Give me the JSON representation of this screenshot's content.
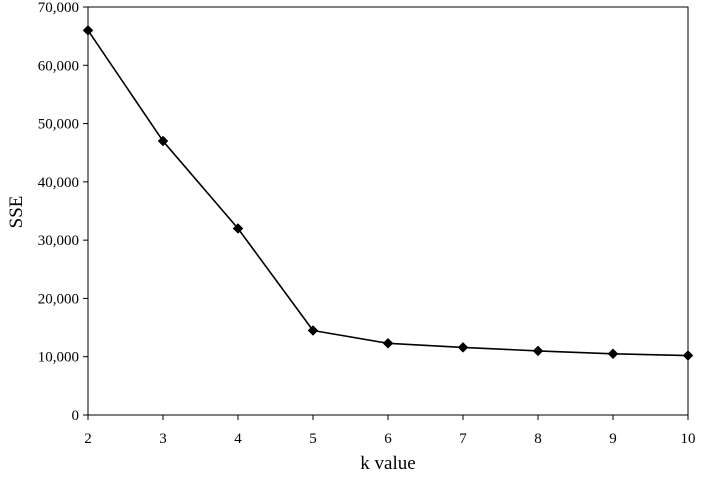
{
  "chart_data": {
    "type": "line",
    "title": "",
    "xlabel": "k value",
    "ylabel": "SSE",
    "x": [
      2,
      3,
      4,
      5,
      6,
      7,
      8,
      9,
      10
    ],
    "series": [
      {
        "name": "",
        "values": [
          66000,
          47000,
          32000,
          14500,
          12300,
          11600,
          11000,
          10500,
          10200
        ],
        "marker": "diamond",
        "color": "#000000"
      }
    ],
    "xlim": [
      2,
      10
    ],
    "ylim": [
      0,
      70000
    ],
    "x_ticks": [
      2,
      3,
      4,
      5,
      6,
      7,
      8,
      9,
      10
    ],
    "y_ticks": [
      0,
      10000,
      20000,
      30000,
      40000,
      50000,
      60000,
      70000
    ],
    "x_tick_labels": [
      "2",
      "3",
      "4",
      "5",
      "6",
      "7",
      "8",
      "9",
      "10"
    ],
    "y_tick_labels": [
      "0",
      "10,000",
      "20,000",
      "30,000",
      "40,000",
      "50,000",
      "60,000",
      "70,000"
    ],
    "grid": false,
    "legend": "none"
  }
}
